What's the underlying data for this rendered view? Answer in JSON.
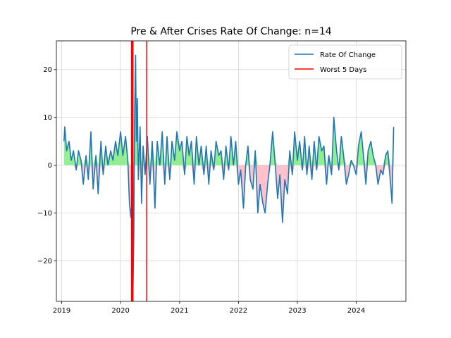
{
  "chart_data": {
    "type": "line",
    "title": "Pre & After Crises Rate Of Change: n=14",
    "xlabel": "",
    "ylabel": "",
    "x_range": [
      "2018-11-29",
      "2024-11-04"
    ],
    "ylim": [
      -28.5,
      26
    ],
    "x_ticks": [
      "2019",
      "2020",
      "2021",
      "2022",
      "2023",
      "2024"
    ],
    "y_ticks": [
      -20,
      -10,
      0,
      10,
      20
    ],
    "grid": true,
    "legend": {
      "placement": "top-right",
      "entries": [
        "Rate Of Change",
        "Worst 5 Days"
      ]
    },
    "colors": {
      "series": "#1f77b4",
      "worst_days": "#ff0000",
      "positive_fill": "#90ee90",
      "negative_fill": "#ffc0cb",
      "grid": "#d3d3d3"
    },
    "fill_to_zero": {
      "positive_color": "lightgreen",
      "negative_color": "pink"
    },
    "worst_days": [
      "2020-03-09",
      "2020-03-12",
      "2020-03-16",
      "2020-03-18",
      "2020-06-11"
    ],
    "series": [
      {
        "name": "Rate Of Change",
        "x": [
          "2019-01-15",
          "2019-01-20",
          "2019-02-01",
          "2019-02-15",
          "2019-03-01",
          "2019-03-15",
          "2019-04-01",
          "2019-04-15",
          "2019-05-01",
          "2019-05-15",
          "2019-06-01",
          "2019-06-15",
          "2019-07-01",
          "2019-07-15",
          "2019-08-01",
          "2019-08-15",
          "2019-09-01",
          "2019-09-15",
          "2019-10-01",
          "2019-10-15",
          "2019-11-01",
          "2019-11-15",
          "2019-12-01",
          "2019-12-15",
          "2020-01-01",
          "2020-01-15",
          "2020-02-01",
          "2020-02-15",
          "2020-02-25",
          "2020-03-05",
          "2020-03-12",
          "2020-03-18",
          "2020-03-23",
          "2020-03-28",
          "2020-04-03",
          "2020-04-08",
          "2020-04-14",
          "2020-04-20",
          "2020-05-01",
          "2020-05-10",
          "2020-05-20",
          "2020-06-01",
          "2020-06-15",
          "2020-07-01",
          "2020-07-15",
          "2020-08-01",
          "2020-08-15",
          "2020-09-01",
          "2020-09-15",
          "2020-10-01",
          "2020-10-15",
          "2020-11-01",
          "2020-11-15",
          "2020-12-01",
          "2020-12-15",
          "2021-01-01",
          "2021-01-15",
          "2021-02-01",
          "2021-02-15",
          "2021-03-01",
          "2021-03-15",
          "2021-04-01",
          "2021-04-15",
          "2021-05-01",
          "2021-05-15",
          "2021-06-01",
          "2021-06-15",
          "2021-07-01",
          "2021-07-15",
          "2021-08-01",
          "2021-08-15",
          "2021-09-01",
          "2021-09-15",
          "2021-10-01",
          "2021-10-15",
          "2021-11-01",
          "2021-11-15",
          "2021-12-01",
          "2021-12-15",
          "2022-01-01",
          "2022-01-15",
          "2022-02-01",
          "2022-02-15",
          "2022-03-01",
          "2022-03-15",
          "2022-04-01",
          "2022-04-15",
          "2022-05-01",
          "2022-05-15",
          "2022-06-01",
          "2022-06-15",
          "2022-07-01",
          "2022-07-15",
          "2022-08-01",
          "2022-08-15",
          "2022-09-01",
          "2022-09-15",
          "2022-10-01",
          "2022-10-15",
          "2022-11-01",
          "2022-11-15",
          "2022-12-01",
          "2022-12-15",
          "2023-01-01",
          "2023-01-15",
          "2023-02-01",
          "2023-02-15",
          "2023-03-01",
          "2023-03-15",
          "2023-04-01",
          "2023-04-15",
          "2023-05-01",
          "2023-05-15",
          "2023-06-01",
          "2023-06-15",
          "2023-07-01",
          "2023-07-15",
          "2023-08-01",
          "2023-08-15",
          "2023-09-01",
          "2023-09-15",
          "2023-10-01",
          "2023-10-15",
          "2023-11-01",
          "2023-11-15",
          "2023-12-01",
          "2023-12-15",
          "2024-01-01",
          "2024-01-15",
          "2024-02-01",
          "2024-02-15",
          "2024-03-01",
          "2024-03-15",
          "2024-04-01",
          "2024-04-15",
          "2024-05-01",
          "2024-05-15",
          "2024-06-01",
          "2024-06-15",
          "2024-07-01",
          "2024-07-15",
          "2024-08-01",
          "2024-08-10",
          "2024-08-20"
        ],
        "values": [
          5,
          8,
          3,
          5,
          1,
          3,
          -1,
          3,
          1,
          -4,
          2,
          -3,
          7,
          -5,
          2,
          -6,
          5,
          -2,
          4,
          0,
          3,
          1,
          5,
          2,
          7,
          2,
          6,
          1,
          -8,
          -11,
          -7,
          -26,
          -15,
          10,
          23,
          5,
          14,
          -3,
          8,
          -8,
          4,
          -2,
          6,
          -4,
          5,
          -9,
          5,
          0,
          7,
          -4,
          6,
          -3,
          5,
          1,
          7,
          3,
          5,
          -2,
          6,
          2,
          5,
          -4,
          6,
          0,
          4,
          -2,
          4,
          -4,
          3,
          -1,
          5,
          2,
          3,
          -3,
          4,
          -1,
          6,
          0,
          5,
          -4,
          -1,
          -9,
          0,
          4,
          -3,
          -5,
          3,
          -10,
          -4,
          -8,
          -10,
          -4,
          0,
          7,
          1,
          -7,
          -2,
          -12,
          -3,
          -6,
          3,
          -2,
          7,
          1,
          5,
          -1,
          6,
          -2,
          4,
          -3,
          5,
          -1,
          6,
          3,
          4,
          -4,
          2,
          -2,
          10,
          3,
          -1,
          6,
          2,
          -4,
          -2,
          1,
          0,
          -2,
          4,
          7,
          2,
          -4,
          3,
          5,
          2,
          0,
          -4,
          -1,
          -2,
          2,
          3,
          -4,
          -8,
          8
        ]
      }
    ]
  }
}
